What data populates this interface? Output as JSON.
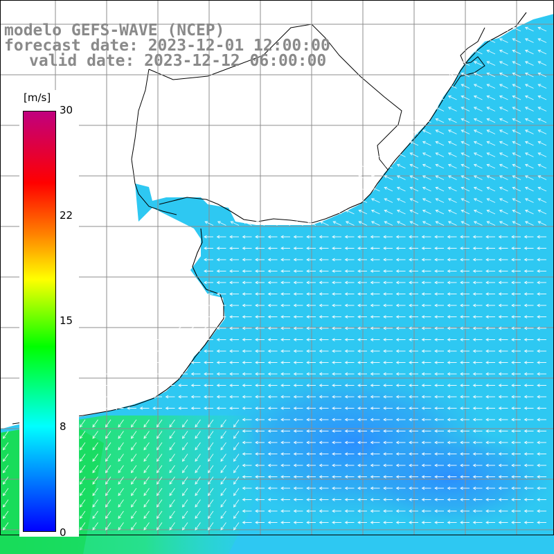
{
  "header": {
    "line1": "modelo GEFS-WAVE (NCEP)",
    "line2": "forecast date: 2023-12-01 12:00:00",
    "line3": "valid date: 2023-12-12 06:00:00"
  },
  "colorbar": {
    "unit": "[m/s]",
    "ticks": [
      "30",
      "22",
      "15",
      "8",
      "0"
    ],
    "tick_values": [
      30,
      22,
      15,
      8,
      0
    ],
    "min": 0,
    "max": 30,
    "colors": [
      "#c0007f",
      "#ff0000",
      "#ff7f00",
      "#ffff00",
      "#00ff00",
      "#00ffff",
      "#0000ff"
    ]
  },
  "map": {
    "land_color": "#ffffff",
    "coast_color": "#000000",
    "grid_color": "#8c8c8c",
    "arrow_color": "#ffffff",
    "field": "wind speed",
    "regions": [
      {
        "name": "north-open-sea",
        "speed": 9,
        "direction": "from-southeast"
      },
      {
        "name": "central-shelf",
        "speed": 9.5,
        "direction": "from-east"
      },
      {
        "name": "southern-core",
        "speed": 7,
        "direction": "from-east"
      },
      {
        "name": "southwest-sector",
        "speed": 12,
        "direction": "from-northeast"
      }
    ]
  }
}
